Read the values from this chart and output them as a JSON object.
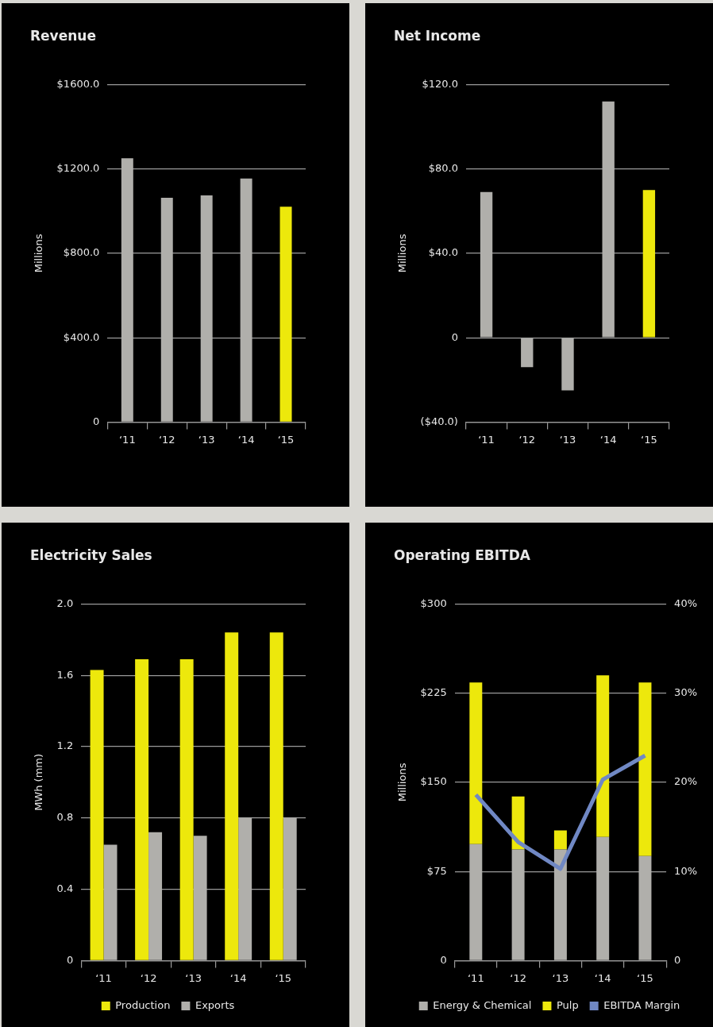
{
  "chart_data": [
    {
      "type": "bar",
      "title": "Revenue",
      "ylabel": "Millions",
      "categories": [
        "‘11",
        "‘12",
        "‘13",
        "‘14",
        "‘15"
      ],
      "values": [
        1250,
        1063,
        1074,
        1154,
        1021
      ],
      "colors": [
        "#b0afab",
        "#b0afab",
        "#b0afab",
        "#b0afab",
        "#ede80c"
      ],
      "ylim": [
        0,
        1600
      ],
      "yticks": [
        {
          "value": 0,
          "label": "0"
        },
        {
          "value": 400,
          "label": "$400.0"
        },
        {
          "value": 800,
          "label": "$800.0"
        },
        {
          "value": 1200,
          "label": "$1200.0"
        },
        {
          "value": 1600,
          "label": "$1600.0"
        }
      ],
      "grid": "y"
    },
    {
      "type": "bar",
      "title": "Net Income",
      "ylabel": "Millions",
      "categories": [
        "‘11",
        "‘12",
        "‘13",
        "‘14",
        "‘15"
      ],
      "values": [
        69,
        -14,
        -25,
        112,
        70
      ],
      "colors": [
        "#b0afab",
        "#b0afab",
        "#b0afab",
        "#b0afab",
        "#ede80c"
      ],
      "ylim": [
        -40,
        120
      ],
      "yticks": [
        {
          "value": -40,
          "label": "($40.0)"
        },
        {
          "value": 0,
          "label": "0"
        },
        {
          "value": 40,
          "label": "$40.0"
        },
        {
          "value": 80,
          "label": "$80.0"
        },
        {
          "value": 120,
          "label": "$120.0"
        }
      ],
      "grid": "y"
    },
    {
      "type": "bar",
      "title": "Electricity Sales",
      "ylabel": "MWh (mm)",
      "categories": [
        "‘11",
        "‘12",
        "‘13",
        "‘14",
        "‘15"
      ],
      "series": [
        {
          "name": "Production",
          "color": "#ede80c",
          "values": [
            1.63,
            1.69,
            1.69,
            1.84,
            1.84
          ]
        },
        {
          "name": "Exports",
          "color": "#b0afab",
          "values": [
            0.65,
            0.72,
            0.7,
            0.8,
            0.8
          ]
        }
      ],
      "ylim": [
        0,
        2
      ],
      "yticks": [
        0,
        {
          "value": 0.4,
          "label": "0.4"
        },
        {
          "value": 0.8,
          "label": "0.8"
        },
        {
          "value": 1.2,
          "label": "1.2"
        },
        {
          "value": 1.6,
          "label": "1.6"
        },
        {
          "value": 2,
          "label": "2.0"
        }
      ],
      "grid": "y",
      "legend": "bottom"
    },
    {
      "type": "bar",
      "title": "Operating EBITDA",
      "ylabel": "Millions",
      "categories": [
        "‘11",
        "‘12",
        "‘13",
        "‘14",
        "‘15"
      ],
      "stacked": true,
      "series": [
        {
          "name": "Energy & Chemical",
          "color": "#b0afab",
          "values": [
            98,
            93.5,
            93.5,
            104,
            88
          ]
        },
        {
          "name": "Pulp",
          "color": "#ede80c",
          "values": [
            136,
            44.5,
            16,
            136,
            146
          ]
        },
        {
          "name": "EBITDA Margin",
          "type": "line",
          "axis": "y2",
          "color": "#7088c4",
          "values": [
            18.6,
            13.3,
            10.3,
            20.3,
            23
          ]
        }
      ],
      "ylim": [
        0,
        300
      ],
      "yticks": [
        0,
        {
          "value": 75,
          "label": "$75"
        },
        {
          "value": 150,
          "label": "$150"
        },
        {
          "value": 225,
          "label": "$225"
        },
        {
          "value": 300,
          "label": "$300"
        }
      ],
      "y2lim": [
        0,
        40
      ],
      "y2ticks": [
        0,
        {
          "value": 10,
          "label": "10%"
        },
        {
          "value": 20,
          "label": "20%"
        },
        {
          "value": 30,
          "label": "30%"
        },
        {
          "value": 40,
          "label": "40%"
        }
      ],
      "grid": "y",
      "legend": "bottom",
      "marker": "none"
    }
  ]
}
